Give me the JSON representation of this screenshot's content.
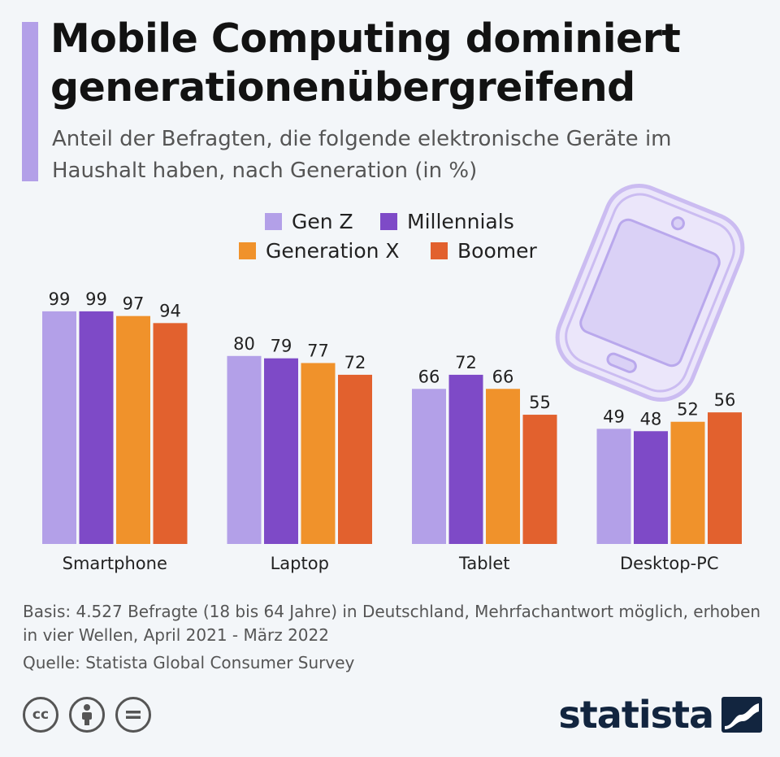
{
  "header": {
    "title": "Mobile Computing dominiert generationenübergreifend",
    "subtitle": "Anteil der Befragten, die folgende elektronische Geräte im Haushalt haben, nach Generation (in %)"
  },
  "colors": {
    "accent": "#b3a0e8",
    "gen_z": "#b3a0e8",
    "millennials": "#7e4ac7",
    "generation_x": "#f0922b",
    "boomer": "#e2612e",
    "brand": "#12253f"
  },
  "icons": [
    "smartphone-illustration",
    "cc-icon",
    "by-attribution-icon",
    "nd-equals-icon",
    "statista-logo-icon"
  ],
  "chart_data": {
    "type": "bar",
    "title": "Mobile Computing dominiert generationenübergreifend",
    "subtitle": "Anteil der Befragten, die folgende elektronische Geräte im Haushalt haben, nach Generation (in %)",
    "categories": [
      "Smartphone",
      "Laptop",
      "Tablet",
      "Desktop-PC"
    ],
    "series": [
      {
        "name": "Gen Z",
        "values": [
          99,
          80,
          66,
          49
        ]
      },
      {
        "name": "Millennials",
        "values": [
          99,
          79,
          72,
          48
        ]
      },
      {
        "name": "Generation X",
        "values": [
          97,
          77,
          66,
          52
        ]
      },
      {
        "name": "Boomer",
        "values": [
          94,
          72,
          55,
          56
        ]
      }
    ],
    "ylim": [
      0,
      100
    ],
    "grid": false,
    "legend_position": "top-center",
    "data_labels": true
  },
  "footer": {
    "note": "Basis: 4.527 Befragte (18 bis 64 Jahre) in Deutschland, Mehrfachantwort möglich, erhoben in vier Wellen, April 2021 - März 2022",
    "source": "Quelle: Statista Global Consumer Survey",
    "cc_label": "cc",
    "brand": "statista"
  }
}
